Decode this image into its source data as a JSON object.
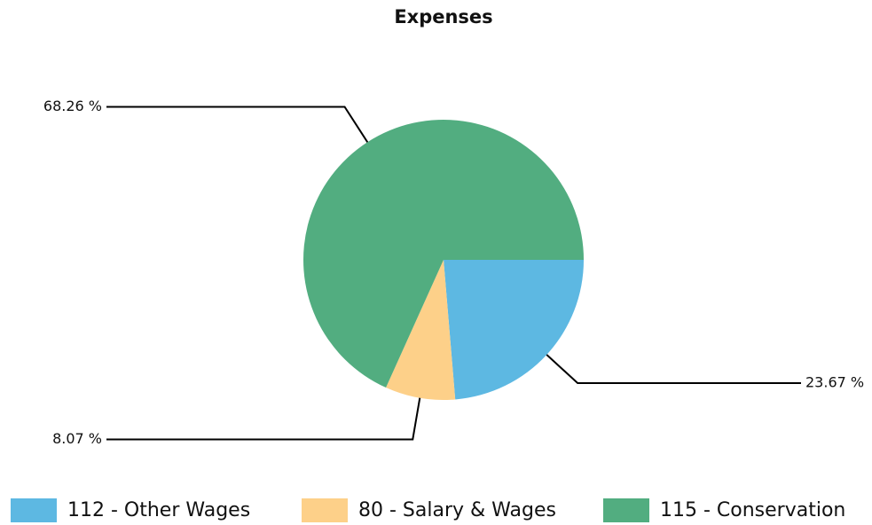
{
  "chart_data": {
    "type": "pie",
    "title": "Expenses",
    "categories": [
      "112 - Other Wages",
      "80 - Salary & Wages",
      "115 - Conservation"
    ],
    "values": [
      23.67,
      8.07,
      68.26
    ],
    "value_labels": [
      "23.67 %",
      "8.07 %",
      "68.26 %"
    ],
    "colors": [
      "#5db8e2",
      "#fdd089",
      "#52ad80"
    ],
    "legend": "bottom"
  }
}
